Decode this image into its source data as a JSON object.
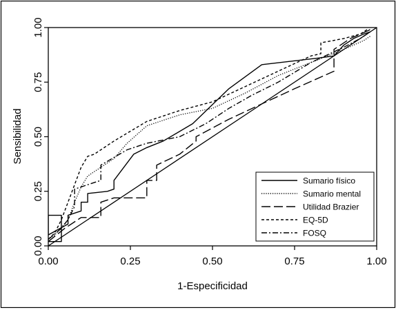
{
  "chart_data": {
    "type": "line",
    "title": "",
    "xlabel": "1-Especificidad",
    "ylabel": "Sensibilidad",
    "xlim": [
      0,
      1
    ],
    "ylim": [
      0,
      1
    ],
    "x_ticks": [
      "0.00",
      "0.25",
      "0.50",
      "0.75",
      "1.00"
    ],
    "y_ticks": [
      "0.00",
      "0.25",
      "0.50",
      "0.75",
      "1.00"
    ],
    "grid": false,
    "legend_position": "bottom-right",
    "reference_line": {
      "x": [
        0,
        1
      ],
      "y": [
        0,
        1
      ]
    },
    "series": [
      {
        "name": "Sumario físico",
        "dash": "solid",
        "x": [
          0.0,
          0.04,
          0.04,
          0.0,
          0.0,
          0.06,
          0.06,
          0.1,
          0.1,
          0.12,
          0.12,
          0.18,
          0.2,
          0.2,
          0.26,
          0.3,
          0.35,
          0.44,
          0.55,
          0.65,
          0.82,
          0.87,
          0.9,
          0.93,
          0.96,
          0.98,
          0.98
        ],
        "y": [
          0.02,
          0.02,
          0.14,
          0.14,
          0.05,
          0.1,
          0.14,
          0.16,
          0.2,
          0.2,
          0.24,
          0.25,
          0.26,
          0.3,
          0.42,
          0.45,
          0.48,
          0.56,
          0.72,
          0.83,
          0.86,
          0.87,
          0.92,
          0.95,
          0.97,
          0.98,
          0.98
        ]
      },
      {
        "name": "Sumario mental",
        "dash": "dotted",
        "x": [
          0.0,
          0.02,
          0.06,
          0.08,
          0.1,
          0.12,
          0.14,
          0.16,
          0.2,
          0.24,
          0.3,
          0.4,
          0.5,
          0.6,
          0.7,
          0.8,
          0.9,
          0.96,
          0.98
        ],
        "y": [
          0.03,
          0.05,
          0.12,
          0.2,
          0.27,
          0.32,
          0.34,
          0.36,
          0.4,
          0.47,
          0.55,
          0.6,
          0.63,
          0.7,
          0.78,
          0.84,
          0.9,
          0.94,
          0.96
        ]
      },
      {
        "name": "Utilidad Brazier",
        "dash": "long-dash",
        "x": [
          0.0,
          0.05,
          0.1,
          0.16,
          0.16,
          0.2,
          0.3,
          0.3,
          0.33,
          0.33,
          0.4,
          0.45,
          0.45,
          0.55,
          0.65,
          0.75,
          0.87,
          0.87,
          0.9,
          0.92,
          0.95,
          0.98
        ],
        "y": [
          0.02,
          0.08,
          0.13,
          0.13,
          0.2,
          0.22,
          0.22,
          0.3,
          0.3,
          0.37,
          0.42,
          0.48,
          0.5,
          0.58,
          0.65,
          0.72,
          0.8,
          0.9,
          0.93,
          0.95,
          0.97,
          0.99
        ]
      },
      {
        "name": "EQ-5D",
        "dash": "short-dash",
        "x": [
          0.0,
          0.02,
          0.04,
          0.06,
          0.08,
          0.1,
          0.12,
          0.14,
          0.2,
          0.3,
          0.4,
          0.5,
          0.6,
          0.7,
          0.8,
          0.83,
          0.83,
          0.9,
          0.95,
          0.97,
          0.98
        ],
        "y": [
          0.03,
          0.06,
          0.12,
          0.2,
          0.28,
          0.36,
          0.41,
          0.42,
          0.48,
          0.57,
          0.62,
          0.66,
          0.73,
          0.8,
          0.87,
          0.88,
          0.93,
          0.95,
          0.97,
          0.99,
          0.99
        ]
      },
      {
        "name": "FOSQ",
        "dash": "dash-dot",
        "x": [
          0.0,
          0.04,
          0.06,
          0.08,
          0.08,
          0.12,
          0.16,
          0.16,
          0.24,
          0.3,
          0.4,
          0.48,
          0.55,
          0.62,
          0.7,
          0.8,
          0.9,
          0.95,
          0.98
        ],
        "y": [
          0.03,
          0.08,
          0.12,
          0.18,
          0.26,
          0.28,
          0.3,
          0.37,
          0.44,
          0.47,
          0.5,
          0.56,
          0.63,
          0.69,
          0.75,
          0.84,
          0.91,
          0.95,
          0.98
        ]
      }
    ]
  }
}
